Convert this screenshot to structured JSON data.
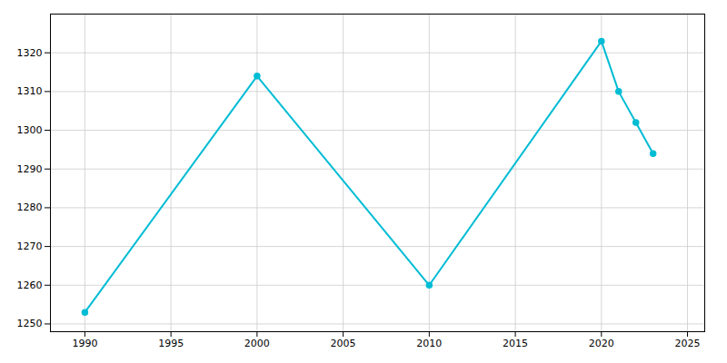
{
  "chart_data": {
    "type": "line",
    "x": [
      1990,
      2000,
      2010,
      2020,
      2021,
      2022,
      2023
    ],
    "values": [
      1253,
      1314,
      1260,
      1323,
      1310,
      1302,
      1294
    ],
    "color": "#00BCD4",
    "marker": "circle",
    "xlim": [
      1988,
      2026
    ],
    "ylim": [
      1248,
      1330
    ],
    "xticks": [
      1990,
      1995,
      2000,
      2005,
      2010,
      2015,
      2020,
      2025
    ],
    "yticks": [
      1250,
      1260,
      1270,
      1280,
      1290,
      1300,
      1310,
      1320
    ],
    "grid": true
  }
}
